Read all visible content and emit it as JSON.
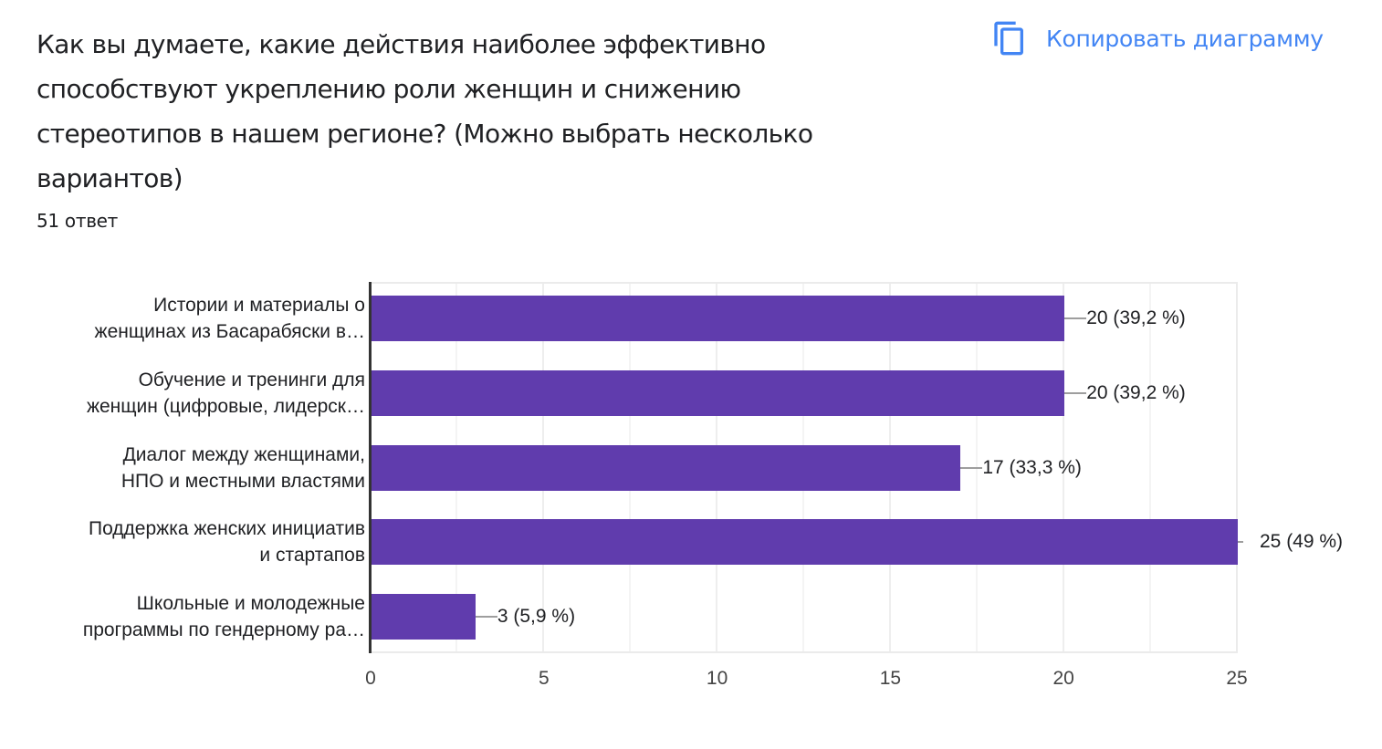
{
  "header": {
    "title": "Как вы думаете, какие действия наиболее эффективно способствуют укреплению роли женщин и снижению стереотипов в нашем регионе? (Можно выбрать несколько вариантов)",
    "responses": "51 ответ",
    "copy_button": {
      "label": "Копировать диаграмму",
      "icon": "copy-icon"
    }
  },
  "colors": {
    "bar": "#603cad",
    "accent": "#4285f4"
  },
  "chart_data": {
    "type": "bar",
    "orientation": "horizontal",
    "title": "Как вы думаете, какие действия наиболее эффективно способствуют укреплению роли женщин и снижению стереотипов в нашем регионе? (Можно выбрать несколько вариантов)",
    "subtitle": "51 ответ",
    "categories": [
      "Истории и материалы о женщинах из Басарабяски в…",
      "Обучение и тренинги для женщин (цифровые, лидерск…",
      "Диалог между женщинами, НПО и местными властями",
      "Поддержка женских инициатив и стартапов",
      "Школьные и молодежные программы по гендерному ра…"
    ],
    "category_lines": [
      [
        "Истории и материалы о",
        "женщинах из Басарабяски в…"
      ],
      [
        "Обучение и тренинги для",
        "женщин (цифровые, лидерск…"
      ],
      [
        "Диалог между женщинами,",
        "НПО и местными властями"
      ],
      [
        "Поддержка женских инициатив",
        "и стартапов"
      ],
      [
        "Школьные и молодежные",
        "программы по гендерному ра…"
      ]
    ],
    "values": [
      20,
      20,
      17,
      25,
      3
    ],
    "percentages": [
      "39,2 %",
      "39,2 %",
      "33,3 %",
      "49 %",
      "5,9 %"
    ],
    "data_labels": [
      "20 (39,2 %)",
      "20 (39,2 %)",
      "17 (33,3 %)",
      "25 (49 %)",
      "3 (5,9 %)"
    ],
    "xlabel": "",
    "ylabel": "",
    "xlim": [
      0,
      25
    ],
    "x_ticks": [
      "0",
      "5",
      "10",
      "15",
      "20",
      "25"
    ],
    "grid": true,
    "legend": "none"
  }
}
